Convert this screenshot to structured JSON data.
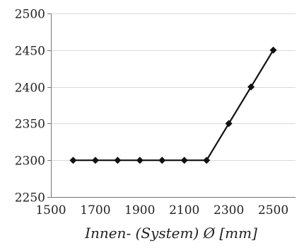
{
  "chart_data": {
    "type": "line",
    "title": "",
    "xlabel": "Innen- (System) Ø [mm]",
    "ylabel": "",
    "xlim": [
      1500,
      2600
    ],
    "ylim": [
      2250,
      2500
    ],
    "x_ticks": [
      1500,
      1700,
      1900,
      2100,
      2300,
      2500
    ],
    "y_ticks": [
      2250,
      2300,
      2350,
      2400,
      2450,
      2500
    ],
    "grid": "horizontal",
    "legend": "none",
    "marker": "diamond",
    "colors": {
      "line": "#111111",
      "grid": "#d9d9d9",
      "axis": "#777777"
    },
    "series": [
      {
        "x": [
          1600,
          1700,
          1800,
          1900,
          2000,
          2100,
          2200,
          2300,
          2400,
          2500
        ],
        "y": [
          2300,
          2300,
          2300,
          2300,
          2300,
          2300,
          2300,
          2350,
          2400,
          2450
        ]
      }
    ]
  }
}
